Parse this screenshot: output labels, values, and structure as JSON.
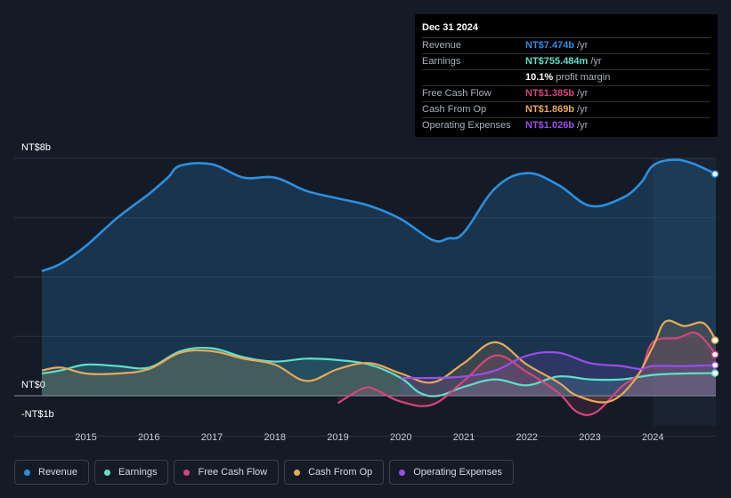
{
  "tooltip": {
    "date": "Dec 31 2024",
    "rows": [
      {
        "label": "Revenue",
        "value": "NT$7.474b",
        "unit": "/yr",
        "color": "#2d8fe0"
      },
      {
        "label": "Earnings",
        "value": "NT$755.484m",
        "unit": "/yr",
        "color": "#5ee0c8"
      },
      {
        "label": "",
        "value": "10.1%",
        "unit": "profit margin",
        "color": "#ffffff"
      },
      {
        "label": "Free Cash Flow",
        "value": "NT$1.385b",
        "unit": "/yr",
        "color": "#d6457e"
      },
      {
        "label": "Cash From Op",
        "value": "NT$1.869b",
        "unit": "/yr",
        "color": "#e9a95a"
      },
      {
        "label": "Operating Expenses",
        "value": "NT$1.026b",
        "unit": "/yr",
        "color": "#9b4ee8"
      }
    ]
  },
  "chart_data": {
    "type": "area",
    "title": "",
    "xlabel": "",
    "ylabel": "",
    "y_tick_labels": [
      "NT$8b",
      "NT$0",
      "-NT$1b"
    ],
    "x_tick_labels": [
      "2015",
      "2016",
      "2017",
      "2018",
      "2019",
      "2020",
      "2021",
      "2022",
      "2023",
      "2024"
    ],
    "x_ticks": [
      2015,
      2016,
      2017,
      2018,
      2019,
      2020,
      2021,
      2022,
      2023,
      2024
    ],
    "xlim": [
      2014.3,
      2025.0
    ],
    "ylim": [
      -1.0,
      8.0
    ],
    "forecast_start": 2024.0,
    "series": [
      {
        "name": "Revenue",
        "color": "#2d8fe0",
        "points": [
          [
            2014.3,
            4.2
          ],
          [
            2014.6,
            4.45
          ],
          [
            2015.0,
            5.05
          ],
          [
            2015.5,
            6.0
          ],
          [
            2016.0,
            6.8
          ],
          [
            2016.3,
            7.35
          ],
          [
            2016.5,
            7.75
          ],
          [
            2017.0,
            7.8
          ],
          [
            2017.5,
            7.35
          ],
          [
            2018.0,
            7.35
          ],
          [
            2018.5,
            6.9
          ],
          [
            2019.0,
            6.65
          ],
          [
            2019.5,
            6.4
          ],
          [
            2020.0,
            5.95
          ],
          [
            2020.5,
            5.25
          ],
          [
            2020.75,
            5.3
          ],
          [
            2021.0,
            5.5
          ],
          [
            2021.5,
            7.0
          ],
          [
            2022.0,
            7.5
          ],
          [
            2022.5,
            7.1
          ],
          [
            2023.0,
            6.4
          ],
          [
            2023.5,
            6.65
          ],
          [
            2023.8,
            7.15
          ],
          [
            2024.0,
            7.75
          ],
          [
            2024.3,
            7.95
          ],
          [
            2024.6,
            7.85
          ],
          [
            2025.0,
            7.47
          ]
        ]
      },
      {
        "name": "Earnings",
        "color": "#5ee0c8",
        "points": [
          [
            2014.3,
            0.75
          ],
          [
            2014.6,
            0.85
          ],
          [
            2015.0,
            1.05
          ],
          [
            2015.5,
            1.0
          ],
          [
            2016.0,
            0.95
          ],
          [
            2016.5,
            1.5
          ],
          [
            2017.0,
            1.6
          ],
          [
            2017.5,
            1.3
          ],
          [
            2018.0,
            1.15
          ],
          [
            2018.5,
            1.25
          ],
          [
            2019.0,
            1.2
          ],
          [
            2019.5,
            1.05
          ],
          [
            2020.0,
            0.6
          ],
          [
            2020.3,
            0.1
          ],
          [
            2020.6,
            0.0
          ],
          [
            2021.0,
            0.3
          ],
          [
            2021.5,
            0.55
          ],
          [
            2022.0,
            0.35
          ],
          [
            2022.5,
            0.65
          ],
          [
            2023.0,
            0.55
          ],
          [
            2023.5,
            0.55
          ],
          [
            2024.0,
            0.7
          ],
          [
            2024.5,
            0.75
          ],
          [
            2025.0,
            0.76
          ]
        ]
      },
      {
        "name": "Free Cash Flow",
        "color": "#d6457e",
        "points": [
          [
            2019.0,
            -0.25
          ],
          [
            2019.4,
            0.25
          ],
          [
            2019.6,
            0.2
          ],
          [
            2020.0,
            -0.2
          ],
          [
            2020.5,
            -0.3
          ],
          [
            2021.0,
            0.5
          ],
          [
            2021.5,
            1.35
          ],
          [
            2022.0,
            0.8
          ],
          [
            2022.5,
            0.1
          ],
          [
            2022.8,
            -0.55
          ],
          [
            2023.1,
            -0.55
          ],
          [
            2023.5,
            0.3
          ],
          [
            2023.8,
            0.8
          ],
          [
            2024.0,
            1.8
          ],
          [
            2024.4,
            1.95
          ],
          [
            2024.7,
            2.1
          ],
          [
            2025.0,
            1.39
          ]
        ]
      },
      {
        "name": "Cash From Op",
        "color": "#e9a95a",
        "points": [
          [
            2014.3,
            0.85
          ],
          [
            2014.6,
            0.95
          ],
          [
            2015.0,
            0.75
          ],
          [
            2015.5,
            0.75
          ],
          [
            2016.0,
            0.9
          ],
          [
            2016.5,
            1.45
          ],
          [
            2017.0,
            1.5
          ],
          [
            2017.5,
            1.25
          ],
          [
            2018.0,
            1.05
          ],
          [
            2018.5,
            0.5
          ],
          [
            2019.0,
            0.9
          ],
          [
            2019.5,
            1.1
          ],
          [
            2020.0,
            0.75
          ],
          [
            2020.5,
            0.45
          ],
          [
            2021.0,
            1.1
          ],
          [
            2021.5,
            1.8
          ],
          [
            2022.0,
            1.05
          ],
          [
            2022.5,
            0.45
          ],
          [
            2022.8,
            0.0
          ],
          [
            2023.3,
            -0.2
          ],
          [
            2023.7,
            0.5
          ],
          [
            2024.0,
            1.65
          ],
          [
            2024.2,
            2.5
          ],
          [
            2024.5,
            2.35
          ],
          [
            2024.8,
            2.45
          ],
          [
            2025.0,
            1.87
          ]
        ]
      },
      {
        "name": "Operating Expenses",
        "color": "#9b4ee8",
        "points": [
          [
            2020.0,
            0.6
          ],
          [
            2020.5,
            0.6
          ],
          [
            2021.0,
            0.65
          ],
          [
            2021.5,
            0.85
          ],
          [
            2022.0,
            1.35
          ],
          [
            2022.5,
            1.45
          ],
          [
            2023.0,
            1.1
          ],
          [
            2023.5,
            1.0
          ],
          [
            2023.8,
            0.9
          ],
          [
            2024.0,
            1.0
          ],
          [
            2024.5,
            1.0
          ],
          [
            2025.0,
            1.03
          ]
        ]
      }
    ]
  },
  "legend": [
    {
      "label": "Revenue",
      "color": "#2d8fe0"
    },
    {
      "label": "Earnings",
      "color": "#5ee0c8"
    },
    {
      "label": "Free Cash Flow",
      "color": "#d6457e"
    },
    {
      "label": "Cash From Op",
      "color": "#e9a95a"
    },
    {
      "label": "Operating Expenses",
      "color": "#9b4ee8"
    }
  ]
}
